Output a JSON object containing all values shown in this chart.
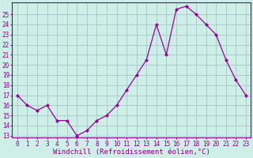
{
  "x": [
    0,
    1,
    2,
    3,
    4,
    5,
    6,
    7,
    8,
    9,
    10,
    11,
    12,
    13,
    14,
    15,
    16,
    17,
    18,
    19,
    20,
    21,
    22,
    23
  ],
  "y": [
    17,
    16,
    15.5,
    16,
    14.5,
    14.5,
    13,
    13.5,
    14.5,
    15,
    16,
    17.5,
    19,
    20.5,
    24,
    21,
    25.5,
    25.8,
    25,
    24,
    23,
    20.5,
    18.5,
    17
  ],
  "line_color": "#990099",
  "marker": "D",
  "marker_size": 2.2,
  "background_color": "#ceeee8",
  "grid_color": "#aacccc",
  "xlabel": "Windchill (Refroidissement éolien,°C)",
  "ylabel": "",
  "title": "",
  "xlim": [
    -0.5,
    23.5
  ],
  "ylim": [
    12.8,
    26.2
  ],
  "yticks": [
    13,
    14,
    15,
    16,
    17,
    18,
    19,
    20,
    21,
    22,
    23,
    24,
    25
  ],
  "xticks": [
    0,
    1,
    2,
    3,
    4,
    5,
    6,
    7,
    8,
    9,
    10,
    11,
    12,
    13,
    14,
    15,
    16,
    17,
    18,
    19,
    20,
    21,
    22,
    23
  ],
  "tick_color": "#880088",
  "tick_fontsize": 5.5,
  "xlabel_fontsize": 6.5,
  "spine_color": "#880088",
  "linewidth": 0.9
}
